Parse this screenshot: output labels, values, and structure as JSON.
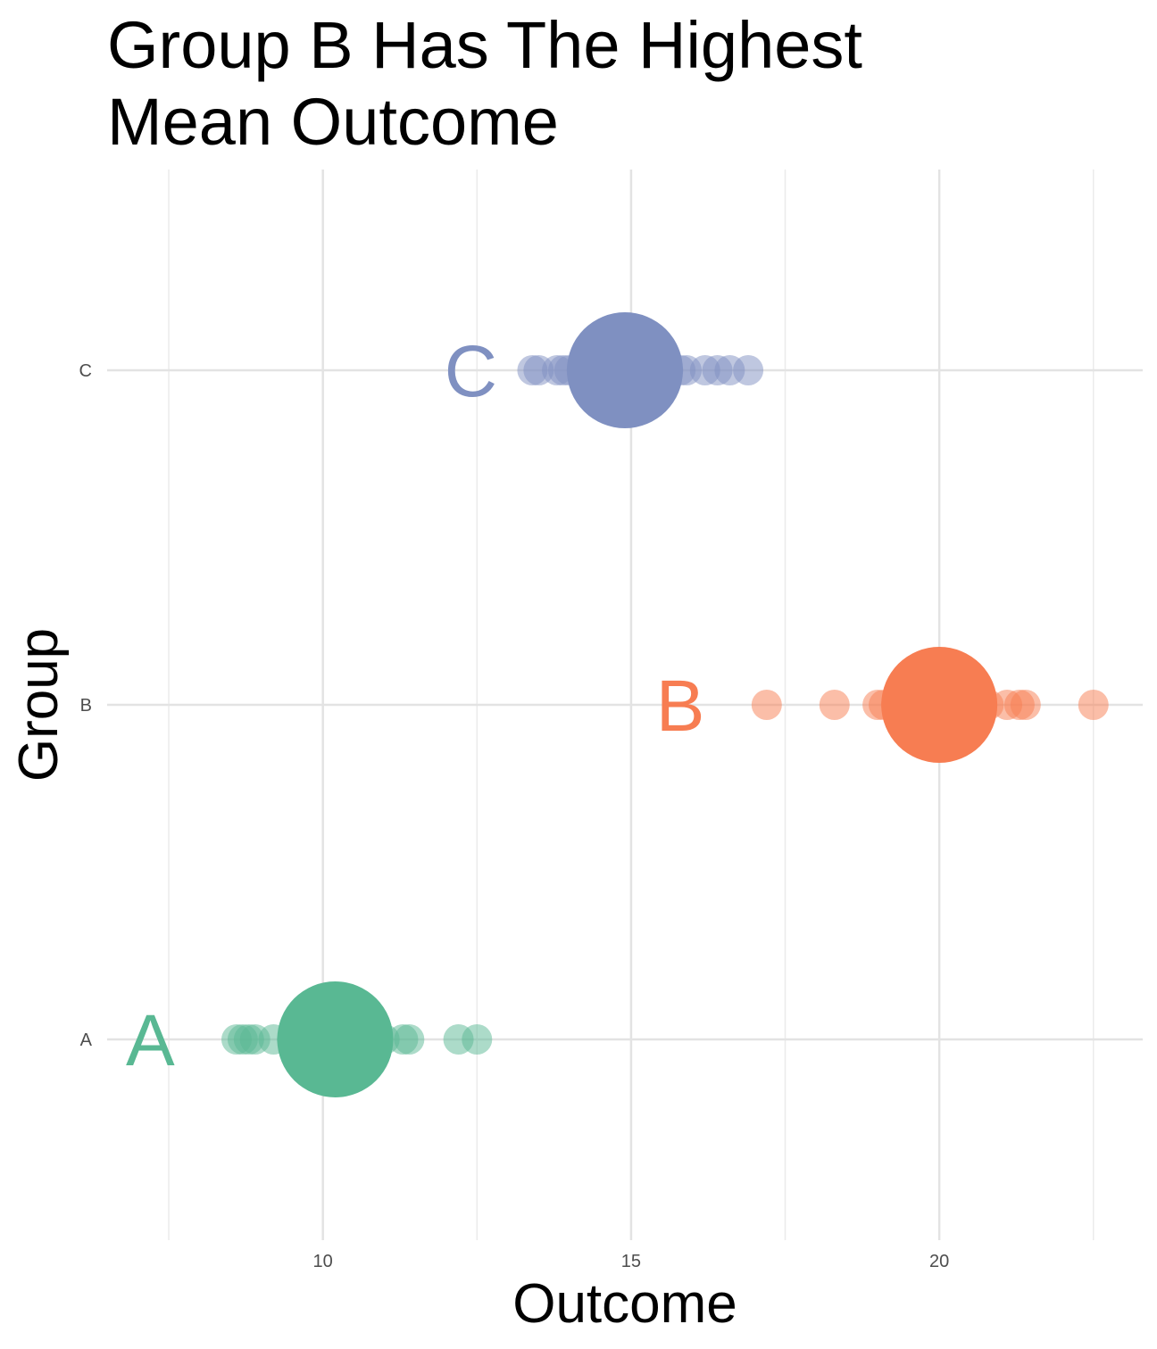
{
  "chart_data": {
    "type": "scatter",
    "title_lines": [
      "Group B Has The Highest",
      "Mean Outcome"
    ],
    "xlabel": "Outcome",
    "ylabel": "Group",
    "xlim": [
      6.5,
      23.3
    ],
    "x_ticks": [
      10,
      15,
      20
    ],
    "x_minor_gridlines": [
      7.5,
      12.5,
      17.5,
      22.5
    ],
    "categories": [
      "A",
      "B",
      "C"
    ],
    "grid": true,
    "series": [
      {
        "name": "A",
        "color": "#59B893",
        "mean": 10.2,
        "label_x": 7.2,
        "points": [
          8.6,
          8.7,
          8.8,
          8.9,
          9.2,
          9.5,
          9.8,
          10.0,
          10.4,
          10.7,
          11.0,
          11.3,
          11.4,
          12.2,
          12.5
        ]
      },
      {
        "name": "B",
        "color": "#F77D52",
        "mean": 20.0,
        "label_x": 15.8,
        "points": [
          17.2,
          18.3,
          19.0,
          19.1,
          19.3,
          19.6,
          19.9,
          20.2,
          20.5,
          20.8,
          21.1,
          21.3,
          21.4,
          22.5
        ]
      },
      {
        "name": "C",
        "color": "#7F90C1",
        "mean": 14.9,
        "label_x": 12.4,
        "points": [
          13.4,
          13.5,
          13.8,
          13.9,
          14.0,
          14.2,
          14.5,
          15.3,
          15.6,
          15.8,
          15.9,
          16.2,
          16.4,
          16.6,
          16.9
        ]
      }
    ]
  }
}
